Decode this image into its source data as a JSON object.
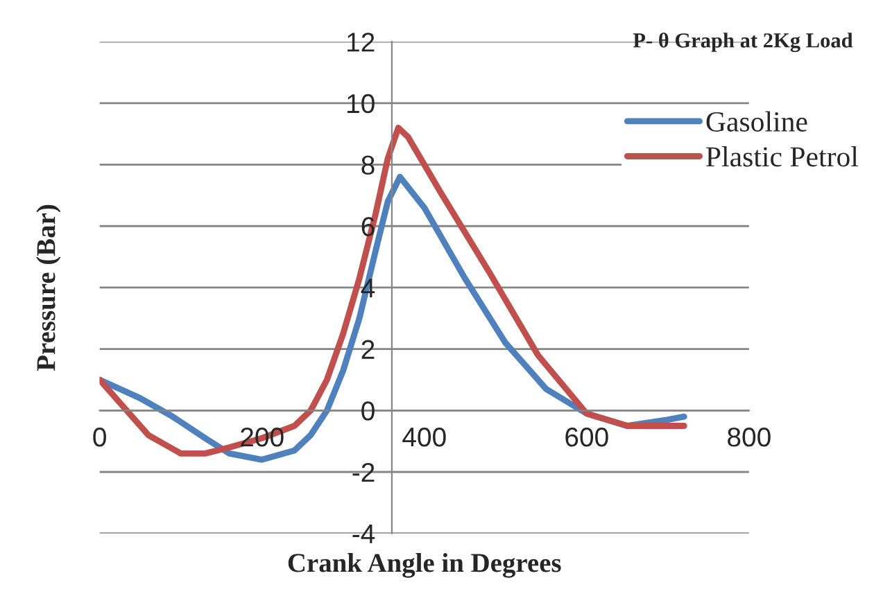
{
  "chart_data": {
    "type": "line",
    "title": "P- θ Graph at 2Kg Load",
    "xlabel": "Crank Angle in Degrees",
    "ylabel": "Pressure (Bar)",
    "series": [
      {
        "name": "Gasoline",
        "color": "#4f81bd",
        "x": [
          0,
          50,
          90,
          130,
          160,
          200,
          240,
          260,
          280,
          300,
          320,
          340,
          355,
          370,
          400,
          450,
          500,
          550,
          600,
          650,
          700,
          720
        ],
        "values": [
          1,
          0.4,
          -0.2,
          -0.9,
          -1.4,
          -1.6,
          -1.3,
          -0.8,
          0,
          1.3,
          3.0,
          5.2,
          6.8,
          7.6,
          6.6,
          4.3,
          2.2,
          0.7,
          -0.1,
          -0.5,
          -0.3,
          -0.2
        ]
      },
      {
        "name": "Plastic Petrol",
        "color": "#c0504d",
        "x": [
          0,
          30,
          60,
          100,
          130,
          160,
          200,
          240,
          260,
          280,
          300,
          320,
          340,
          355,
          368,
          380,
          420,
          480,
          540,
          600,
          650,
          700,
          720
        ],
        "values": [
          1,
          0.1,
          -0.8,
          -1.4,
          -1.4,
          -1.2,
          -0.9,
          -0.5,
          0,
          1.0,
          2.5,
          4.3,
          6.4,
          8.2,
          9.2,
          8.9,
          7.1,
          4.5,
          1.8,
          -0.1,
          -0.5,
          -0.5,
          -0.5
        ]
      }
    ],
    "xlim": [
      0,
      800
    ],
    "xticks": [
      0,
      200,
      400,
      600,
      800
    ],
    "ylim": [
      -4,
      12
    ],
    "yticks": [
      -4,
      -2,
      0,
      2,
      4,
      6,
      8,
      10,
      12
    ],
    "grid": "y",
    "legend": "top right",
    "marker": "none",
    "line_style": "solid"
  }
}
